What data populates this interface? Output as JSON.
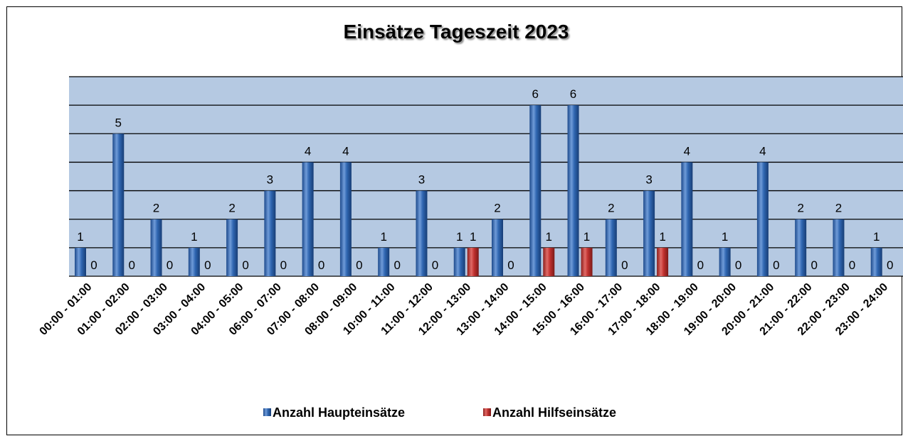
{
  "chart_data": {
    "type": "bar",
    "title": "Einsätze Tageszeit 2023",
    "categories": [
      "00:00 - 01:00",
      "01:00 - 02:00",
      "02:00 - 03:00",
      "03:00 - 04:00",
      "04:00 - 05:00",
      "06:00 - 07:00",
      "07:00 - 08:00",
      "08:00 - 09:00",
      "10:00 - 11:00",
      "11:00 - 12:00",
      "12:00 - 13:00",
      "13:00 - 14:00",
      "14:00 - 15:00",
      "15:00 - 16:00",
      "16:00 - 17:00",
      "17:00 - 18:00",
      "18:00 - 19:00",
      "19:00 - 20:00",
      "20:00 - 21:00",
      "21:00 - 22:00",
      "22:00 - 23:00",
      "23:00 - 24:00"
    ],
    "series": [
      {
        "name": "Anzahl Haupteinsätze",
        "color": "#2f66b1",
        "values": [
          1,
          5,
          2,
          1,
          2,
          3,
          4,
          4,
          1,
          3,
          1,
          2,
          6,
          6,
          2,
          3,
          4,
          1,
          4,
          2,
          2,
          1
        ]
      },
      {
        "name": "Anzahl Hilfseinsätze",
        "color": "#c0312f",
        "values": [
          0,
          0,
          0,
          0,
          0,
          0,
          0,
          0,
          0,
          0,
          1,
          0,
          1,
          1,
          0,
          1,
          0,
          0,
          0,
          0,
          0,
          0
        ]
      }
    ],
    "ylim": [
      0,
      7
    ],
    "yticks": [
      0,
      1,
      2,
      3,
      4,
      5,
      6,
      7
    ],
    "grid": true,
    "legend": "bottom"
  }
}
